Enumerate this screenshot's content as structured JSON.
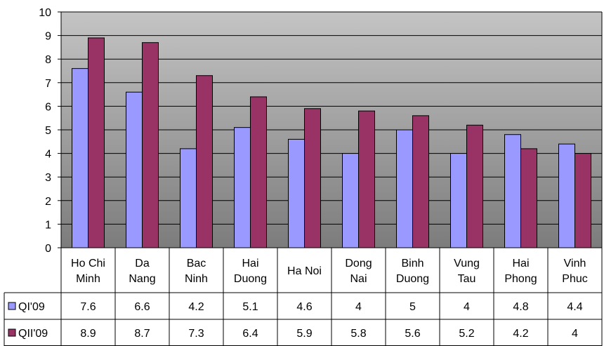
{
  "chart_data": {
    "type": "bar",
    "title": "",
    "xlabel": "",
    "ylabel": "",
    "ylim": [
      0,
      10
    ],
    "yticks": [
      0,
      1,
      2,
      3,
      4,
      5,
      6,
      7,
      8,
      9,
      10
    ],
    "grid": true,
    "legend": "data-table",
    "categories": [
      [
        "Ho Chi",
        "Minh"
      ],
      [
        "Da",
        "Nang"
      ],
      [
        "Bac",
        "Ninh"
      ],
      [
        "Hai",
        "Duong"
      ],
      [
        "Ha Noi"
      ],
      [
        "Dong",
        "Nai"
      ],
      [
        "Binh",
        "Duong"
      ],
      [
        "Vung",
        "Tau"
      ],
      [
        "Hai",
        "Phong"
      ],
      [
        "Vinh",
        "Phuc"
      ]
    ],
    "series": [
      {
        "name": "QI'09",
        "color": "#9999ff",
        "values": [
          7.6,
          6.6,
          4.2,
          5.1,
          4.6,
          4,
          5,
          4,
          4.8,
          4.4
        ]
      },
      {
        "name": "QII'09",
        "color": "#993366",
        "values": [
          8.9,
          8.7,
          7.3,
          6.4,
          5.9,
          5.8,
          5.6,
          5.2,
          4.2,
          4
        ]
      }
    ],
    "plot_gradient": [
      "#c4c4c4",
      "#7c7c7c"
    ]
  }
}
